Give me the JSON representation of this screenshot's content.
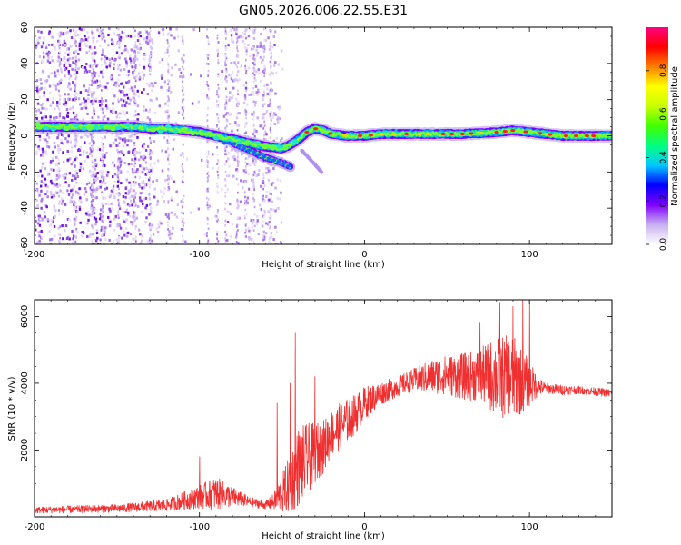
{
  "title": "GN05.2026.006.22.55.E31",
  "chart_data": [
    {
      "type": "heatmap",
      "name": "spectrogram",
      "xlabel": "Height of straight line (km)",
      "ylabel": "Frequency (Hz)",
      "xlim": [
        -200,
        150
      ],
      "ylim": [
        -60,
        60
      ],
      "xticks": [
        -200,
        -100,
        0,
        100
      ],
      "xtick_labels": [
        "-200",
        "-100",
        "0",
        "100"
      ],
      "yticks": [
        -60,
        -40,
        -20,
        0,
        20,
        40,
        60
      ],
      "ytick_labels": [
        "-60",
        "-40",
        "-20",
        "0",
        "20",
        "40",
        "60"
      ],
      "ridge": {
        "x": [
          -200,
          -190,
          -180,
          -170,
          -160,
          -150,
          -140,
          -130,
          -120,
          -110,
          -100,
          -90,
          -80,
          -70,
          -60,
          -50,
          -45,
          -40,
          -35,
          -30,
          -25,
          -20,
          -10,
          0,
          10,
          20,
          40,
          60,
          80,
          90,
          100,
          120,
          150
        ],
        "y": [
          5,
          5,
          5,
          5,
          5,
          5,
          5,
          4,
          4,
          3,
          2,
          0,
          -2,
          -4,
          -6,
          -7,
          -5,
          -2,
          2,
          4,
          3,
          1,
          0,
          0,
          1,
          1,
          1,
          1,
          2,
          3,
          2,
          0,
          0
        ]
      },
      "branch": {
        "x": [
          -80,
          -70,
          -60,
          -50,
          -45
        ],
        "y": [
          -4,
          -8,
          -12,
          -15,
          -17
        ]
      },
      "branch2": {
        "x": [
          -38,
          -32,
          -26
        ],
        "y": [
          -8,
          -14,
          -20
        ]
      }
    },
    {
      "type": "colorbar",
      "name": "amplitude-colorbar",
      "label": "Normalized spectral amplitude",
      "range": [
        0,
        1
      ],
      "ticks": [
        0.0,
        0.2,
        0.4,
        0.6,
        0.8
      ],
      "tick_labels": [
        "0.0",
        "0.2",
        "0.4",
        "0.6",
        "0.8"
      ],
      "stops": [
        "#ffffff",
        "#c8b0f0",
        "#8000ff",
        "#0000ff",
        "#00c8ff",
        "#00ff80",
        "#40ff00",
        "#c8ff00",
        "#ffff00",
        "#ff8000",
        "#ff0000",
        "#ff0080"
      ]
    },
    {
      "type": "line",
      "name": "snr",
      "xlabel": "Height of straight line (km)",
      "ylabel": "SNR (10 * v/v)",
      "xlim": [
        -200,
        150
      ],
      "ylim": [
        0,
        6500
      ],
      "xticks": [
        -200,
        -100,
        0,
        100
      ],
      "xtick_labels": [
        "-200",
        "-100",
        "0",
        "100"
      ],
      "yticks": [
        2000,
        4000,
        6000
      ],
      "ytick_labels": [
        "2000",
        "4000",
        "6000"
      ],
      "color": "#f03030",
      "envelope": {
        "x": [
          -200,
          -150,
          -120,
          -100,
          -90,
          -80,
          -70,
          -60,
          -55,
          -50,
          -45,
          -40,
          -35,
          -30,
          -25,
          -20,
          -15,
          -10,
          -5,
          0,
          10,
          20,
          30,
          40,
          50,
          60,
          70,
          80,
          90,
          100,
          105,
          110,
          120,
          130,
          140,
          150
        ],
        "mean": [
          200,
          250,
          350,
          600,
          700,
          600,
          450,
          350,
          450,
          700,
          1000,
          1500,
          1700,
          1900,
          2100,
          2500,
          2700,
          2900,
          3100,
          3400,
          3700,
          3900,
          4100,
          4200,
          4250,
          4200,
          4250,
          4200,
          4150,
          4000,
          3900,
          3850,
          3800,
          3800,
          3750,
          3700
        ],
        "noise": [
          100,
          120,
          180,
          350,
          500,
          300,
          150,
          120,
          250,
          600,
          900,
          1200,
          1100,
          900,
          800,
          700,
          700,
          650,
          600,
          500,
          350,
          300,
          350,
          500,
          600,
          700,
          800,
          1200,
          1300,
          700,
          300,
          150,
          150,
          120,
          120,
          120
        ]
      },
      "spikes": [
        {
          "x": -100,
          "y": 1800
        },
        {
          "x": -53,
          "y": 3400
        },
        {
          "x": -45,
          "y": 4000
        },
        {
          "x": -42,
          "y": 5500
        },
        {
          "x": -30,
          "y": 4200
        },
        {
          "x": 70,
          "y": 5800
        },
        {
          "x": 82,
          "y": 6400
        },
        {
          "x": 90,
          "y": 6300
        },
        {
          "x": 96,
          "y": 6500
        },
        {
          "x": 100,
          "y": 6400
        }
      ]
    }
  ]
}
